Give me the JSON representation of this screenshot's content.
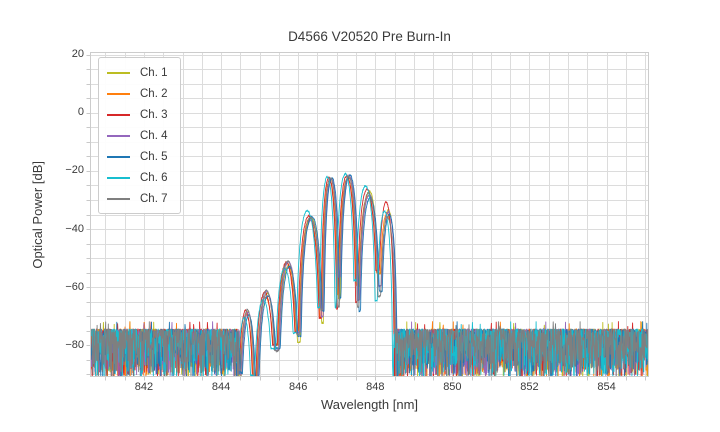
{
  "chart_data": {
    "type": "line",
    "title": "D4566 V20520 Pre Burn-In",
    "xlabel": "Wavelength [nm]",
    "ylabel": "Optical Power [dB]",
    "xlim": [
      840.6,
      855.1
    ],
    "ylim": [
      -91,
      21
    ],
    "x_ticks": [
      842,
      844,
      846,
      848,
      850,
      852,
      854
    ],
    "y_ticks": [
      20,
      0,
      -20,
      -40,
      -60,
      -80
    ],
    "x_minor_step": 0.5,
    "y_minor_step": 5,
    "grid": true,
    "grid_color": "#dcdcdc",
    "spine_color": "#cccccc",
    "legend_position": "upper left",
    "series": [
      {
        "name": "Ch. 1",
        "color": "#bcbd22"
      },
      {
        "name": "Ch. 2",
        "color": "#ff7f0e"
      },
      {
        "name": "Ch. 3",
        "color": "#d62728"
      },
      {
        "name": "Ch. 4",
        "color": "#9467bd"
      },
      {
        "name": "Ch. 5",
        "color": "#1f77b4"
      },
      {
        "name": "Ch. 6",
        "color": "#17becf"
      },
      {
        "name": "Ch. 7",
        "color": "#7f7f7f"
      }
    ],
    "spectrum": {
      "description": "Seven overlapping optical spectra: flat noise floor outside the signal band, multi-lobe spectrum inside band 844.5-848.5 nm, main peak about -22 dB near 847.3 nm",
      "band_nm": [
        844.46,
        848.54
      ],
      "lobe_boundaries_nm": [
        844.46,
        844.9,
        845.45,
        846.01,
        846.62,
        847.05,
        847.55,
        848.1,
        848.54
      ],
      "lobes": [
        {
          "center_nm": 844.68,
          "peak_db": -69.0
        },
        {
          "center_nm": 845.17,
          "peak_db": -62.5
        },
        {
          "center_nm": 845.73,
          "peak_db": -52.0
        },
        {
          "center_nm": 846.31,
          "peak_db": -36.0
        },
        {
          "center_nm": 846.84,
          "peak_db": -22.6
        },
        {
          "center_nm": 847.3,
          "peak_db": -21.8
        },
        {
          "center_nm": 847.82,
          "peak_db": -27.5
        },
        {
          "center_nm": 848.32,
          "peak_db": -33.0
        }
      ],
      "notch_depths_db": [
        -88,
        -93,
        -80,
        -77,
        -72,
        -62,
        -63,
        -60,
        -93
      ],
      "noise_floor": {
        "top_db": -74,
        "mean_db": -80,
        "bottom_db": -91
      },
      "channel_offsets_nm": [
        0.02,
        -0.02,
        -0.04,
        0.02,
        0.04,
        -0.08,
        0.0
      ],
      "channel_peak_adjust_db": [
        [
          0.5,
          0.3,
          -0.5,
          0.0,
          -0.3,
          -0.2,
          0.5,
          -0.5
        ],
        [
          -0.5,
          -1.0,
          0.3,
          -0.5,
          -0.4,
          -0.5,
          -1.2,
          -1.5
        ],
        [
          1.0,
          0.8,
          0.5,
          0.5,
          0.4,
          0.2,
          1.2,
          2.2
        ],
        [
          0.3,
          1.0,
          0.8,
          -0.8,
          0.0,
          0.3,
          -0.8,
          -1.0
        ],
        [
          -0.8,
          -0.5,
          -1.0,
          0.3,
          0.2,
          0.4,
          -1.8,
          -2.0
        ],
        [
          -1.5,
          -1.8,
          -1.5,
          2.4,
          0.6,
          0.8,
          2.4,
          -0.8
        ],
        [
          1.2,
          1.3,
          1.0,
          0.0,
          0.3,
          0.0,
          0.0,
          -3.0
        ]
      ]
    }
  }
}
